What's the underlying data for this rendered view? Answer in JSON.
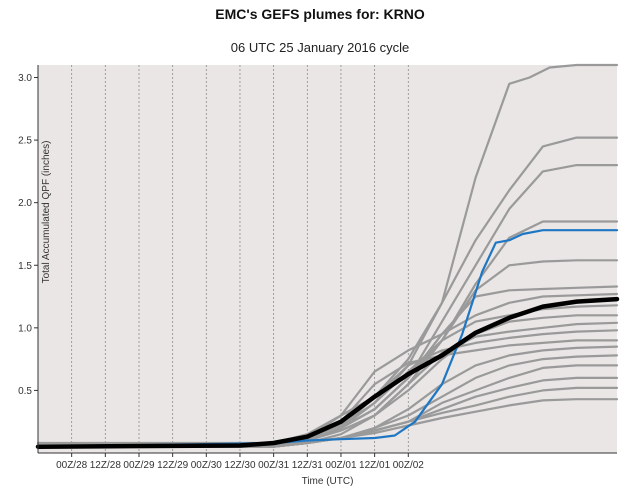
{
  "title": "EMC's GEFS plumes for: KRNO",
  "subtitle": "06 UTC 25 January 2016 cycle",
  "colors": {
    "plot_bg": "#e9e6e5",
    "member": "#9a9a9a",
    "mean": "#000000",
    "highlight": "#1f77c4",
    "grid": "#8c8c8c"
  },
  "chart_data": {
    "type": "line",
    "xlabel": "Time (UTC)",
    "ylabel": "Total Accumulated QPF (inches)",
    "xlim": [
      0,
      8.6
    ],
    "ylim": [
      0,
      3.1
    ],
    "grid": true,
    "x_ticks": [
      "00Z/28",
      "12Z/28",
      "00Z/29",
      "12Z/29",
      "00Z/30",
      "12Z/30",
      "00Z/31",
      "12Z/31",
      "00Z/01",
      "12Z/01",
      "00Z/02"
    ],
    "y_ticks": [
      0.5,
      1.0,
      1.5,
      2.0,
      2.5,
      3.0
    ],
    "y_tick_labels": [
      "0.5",
      "1.0",
      "1.5",
      "2.0",
      "2.5",
      "3.0"
    ],
    "series": [
      {
        "role": "member",
        "x": [
          0,
          3.5,
          4.0,
          4.5,
          5.0,
          5.5,
          6.0,
          6.5,
          7.0,
          7.3,
          7.6,
          8.0,
          8.6
        ],
        "values": [
          0.08,
          0.08,
          0.15,
          0.3,
          0.45,
          0.75,
          1.2,
          2.2,
          2.95,
          3.0,
          3.08,
          3.1,
          3.1
        ]
      },
      {
        "role": "member",
        "x": [
          0,
          3.5,
          4.0,
          4.5,
          5.0,
          5.5,
          6.0,
          6.5,
          7.0,
          7.5,
          8.0,
          8.6
        ],
        "values": [
          0.06,
          0.06,
          0.12,
          0.22,
          0.4,
          0.7,
          1.2,
          1.7,
          2.1,
          2.45,
          2.52,
          2.52
        ]
      },
      {
        "role": "member",
        "x": [
          0,
          3.5,
          4.0,
          4.5,
          5.0,
          5.5,
          6.0,
          6.5,
          7.0,
          7.5,
          8.0,
          8.6
        ],
        "values": [
          0.05,
          0.05,
          0.1,
          0.2,
          0.35,
          0.6,
          1.05,
          1.5,
          1.95,
          2.25,
          2.3,
          2.3
        ]
      },
      {
        "role": "member",
        "x": [
          0,
          3.5,
          4.0,
          4.5,
          5.0,
          5.5,
          6.0,
          6.5,
          7.0,
          7.5,
          8.0,
          8.6
        ],
        "values": [
          0.05,
          0.05,
          0.1,
          0.18,
          0.3,
          0.55,
          0.9,
          1.35,
          1.72,
          1.85,
          1.85,
          1.85
        ]
      },
      {
        "role": "member",
        "x": [
          0,
          3.5,
          4.0,
          4.5,
          5.0,
          5.5,
          6.0,
          6.5,
          7.0,
          7.5,
          8.0,
          8.6
        ],
        "values": [
          0.05,
          0.05,
          0.1,
          0.2,
          0.35,
          0.6,
          0.9,
          1.3,
          1.5,
          1.53,
          1.54,
          1.54
        ]
      },
      {
        "role": "member",
        "x": [
          0,
          3.5,
          4.0,
          4.5,
          5.0,
          5.5,
          6.0,
          6.5,
          7.0,
          7.5,
          8.0,
          8.6
        ],
        "values": [
          0.05,
          0.05,
          0.1,
          0.2,
          0.35,
          0.6,
          0.95,
          1.25,
          1.3,
          1.31,
          1.32,
          1.33
        ]
      },
      {
        "role": "member",
        "x": [
          0,
          3.5,
          4.0,
          4.5,
          5.0,
          5.5,
          6.0,
          6.5,
          7.0,
          7.5,
          8.0,
          8.6
        ],
        "values": [
          0.05,
          0.05,
          0.12,
          0.3,
          0.65,
          0.82,
          0.95,
          1.1,
          1.2,
          1.25,
          1.26,
          1.27
        ]
      },
      {
        "role": "member",
        "x": [
          0,
          3.5,
          4.0,
          4.5,
          5.0,
          5.5,
          6.0,
          6.5,
          7.0,
          7.5,
          8.0,
          8.6
        ],
        "values": [
          0.05,
          0.05,
          0.1,
          0.2,
          0.4,
          0.65,
          0.9,
          1.05,
          1.1,
          1.15,
          1.17,
          1.18
        ]
      },
      {
        "role": "member",
        "x": [
          0,
          3.5,
          4.0,
          4.5,
          5.0,
          5.5,
          6.0,
          6.5,
          7.0,
          7.5,
          8.0,
          8.6
        ],
        "values": [
          0.05,
          0.05,
          0.1,
          0.18,
          0.3,
          0.5,
          0.75,
          0.95,
          1.05,
          1.08,
          1.1,
          1.1
        ]
      },
      {
        "role": "member",
        "x": [
          0,
          3.5,
          4.0,
          4.5,
          5.0,
          5.5,
          6.0,
          6.5,
          7.0,
          7.5,
          8.0,
          8.6
        ],
        "values": [
          0.05,
          0.05,
          0.08,
          0.15,
          0.3,
          0.55,
          0.8,
          0.93,
          0.97,
          1.0,
          1.03,
          1.04
        ]
      },
      {
        "role": "member",
        "x": [
          0,
          3.5,
          4.0,
          4.5,
          5.0,
          5.5,
          6.0,
          6.5,
          7.0,
          7.5,
          8.0,
          8.6
        ],
        "values": [
          0.05,
          0.05,
          0.09,
          0.2,
          0.45,
          0.7,
          0.82,
          0.88,
          0.92,
          0.95,
          0.97,
          0.98
        ]
      },
      {
        "role": "member",
        "x": [
          0,
          3.5,
          4.0,
          4.5,
          5.0,
          5.5,
          6.0,
          6.5,
          7.0,
          7.5,
          8.0,
          8.6
        ],
        "values": [
          0.05,
          0.05,
          0.1,
          0.25,
          0.55,
          0.72,
          0.78,
          0.82,
          0.86,
          0.88,
          0.9,
          0.9
        ]
      },
      {
        "role": "member",
        "x": [
          0,
          3.5,
          4.0,
          4.5,
          5.0,
          5.5,
          6.0,
          6.5,
          7.0,
          7.5,
          8.0,
          8.6
        ],
        "values": [
          0.05,
          0.05,
          0.08,
          0.12,
          0.2,
          0.35,
          0.55,
          0.7,
          0.78,
          0.82,
          0.84,
          0.85
        ]
      },
      {
        "role": "member",
        "x": [
          0,
          3.5,
          4.0,
          4.5,
          5.0,
          5.5,
          6.0,
          6.5,
          7.0,
          7.5,
          8.0,
          8.6
        ],
        "values": [
          0.05,
          0.05,
          0.08,
          0.12,
          0.2,
          0.3,
          0.45,
          0.6,
          0.7,
          0.75,
          0.77,
          0.78
        ]
      },
      {
        "role": "member",
        "x": [
          0,
          3.5,
          4.0,
          4.5,
          5.0,
          5.5,
          6.0,
          6.5,
          7.0,
          7.5,
          8.0,
          8.6
        ],
        "values": [
          0.05,
          0.05,
          0.08,
          0.12,
          0.18,
          0.25,
          0.4,
          0.5,
          0.6,
          0.68,
          0.7,
          0.7
        ]
      },
      {
        "role": "member",
        "x": [
          0,
          3.5,
          4.0,
          4.5,
          5.0,
          5.5,
          6.0,
          6.5,
          7.0,
          7.5,
          8.0,
          8.6
        ],
        "values": [
          0.05,
          0.05,
          0.08,
          0.12,
          0.18,
          0.25,
          0.35,
          0.45,
          0.52,
          0.58,
          0.6,
          0.6
        ]
      },
      {
        "role": "member",
        "x": [
          0,
          3.5,
          4.0,
          4.5,
          5.0,
          5.5,
          6.0,
          6.5,
          7.0,
          7.5,
          8.0,
          8.6
        ],
        "values": [
          0.05,
          0.05,
          0.08,
          0.12,
          0.18,
          0.25,
          0.32,
          0.38,
          0.45,
          0.5,
          0.52,
          0.52
        ]
      },
      {
        "role": "member",
        "x": [
          0,
          3.5,
          4.0,
          4.5,
          5.0,
          5.5,
          6.0,
          6.5,
          7.0,
          7.5,
          8.0,
          8.6
        ],
        "values": [
          0.05,
          0.05,
          0.08,
          0.12,
          0.16,
          0.22,
          0.28,
          0.33,
          0.38,
          0.42,
          0.43,
          0.43
        ]
      },
      {
        "role": "mean",
        "x": [
          0,
          3.0,
          3.5,
          4.0,
          4.5,
          5.0,
          5.5,
          6.0,
          6.5,
          7.0,
          7.5,
          8.0,
          8.6
        ],
        "values": [
          0.05,
          0.06,
          0.08,
          0.13,
          0.25,
          0.45,
          0.63,
          0.78,
          0.96,
          1.08,
          1.17,
          1.21,
          1.23
        ]
      },
      {
        "role": "highlight",
        "x": [
          0,
          3.5,
          4.0,
          4.5,
          5.0,
          5.3,
          5.6,
          6.0,
          6.3,
          6.6,
          6.8,
          7.0,
          7.2,
          7.5,
          8.0,
          8.6
        ],
        "values": [
          0.05,
          0.08,
          0.1,
          0.11,
          0.12,
          0.14,
          0.25,
          0.55,
          0.95,
          1.45,
          1.68,
          1.7,
          1.75,
          1.78,
          1.78,
          1.78
        ]
      }
    ]
  }
}
